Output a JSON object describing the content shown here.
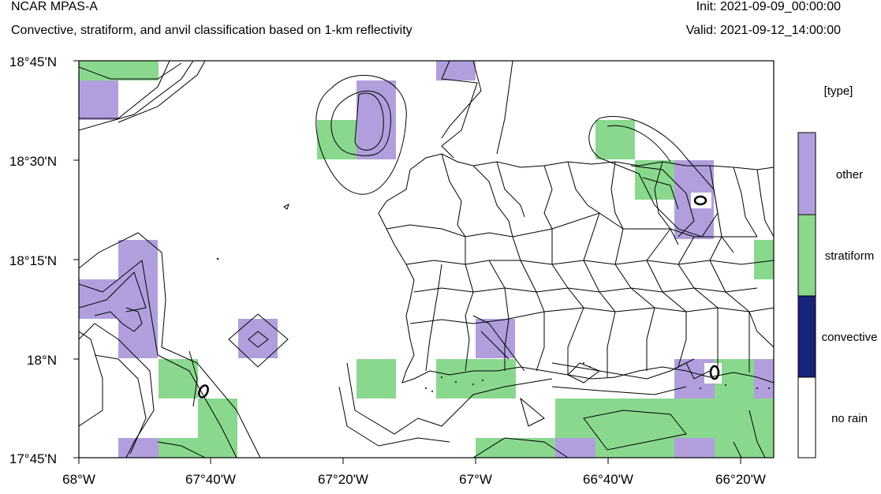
{
  "header": {
    "model": "NCAR MPAS-A",
    "description": "Convective, stratiform, and anvil classification based on 1-km reflectivity",
    "init": "Init: 2021-09-09_00:00:00",
    "valid": "Valid: 2021-09-12_14:00:00"
  },
  "map": {
    "lat_range": [
      17.75,
      18.75
    ],
    "lon_range": [
      -68.0,
      -66.25
    ],
    "lat_ticks": [
      "18°45'N",
      "18°30'N",
      "18°15'N",
      "18°N",
      "17°45'N"
    ],
    "lon_ticks": [
      "68°W",
      "67°40'W",
      "67°20'W",
      "67°W",
      "66°40'W",
      "66°20'W"
    ]
  },
  "legend": {
    "title": "[type]",
    "classes": [
      {
        "label": "other",
        "color": "#b19fdd"
      },
      {
        "label": "stratiform",
        "color": "#8ad88e"
      },
      {
        "label": "convective",
        "color": "#17247a"
      },
      {
        "label": "no rain",
        "color": "#ffffff"
      }
    ]
  }
}
